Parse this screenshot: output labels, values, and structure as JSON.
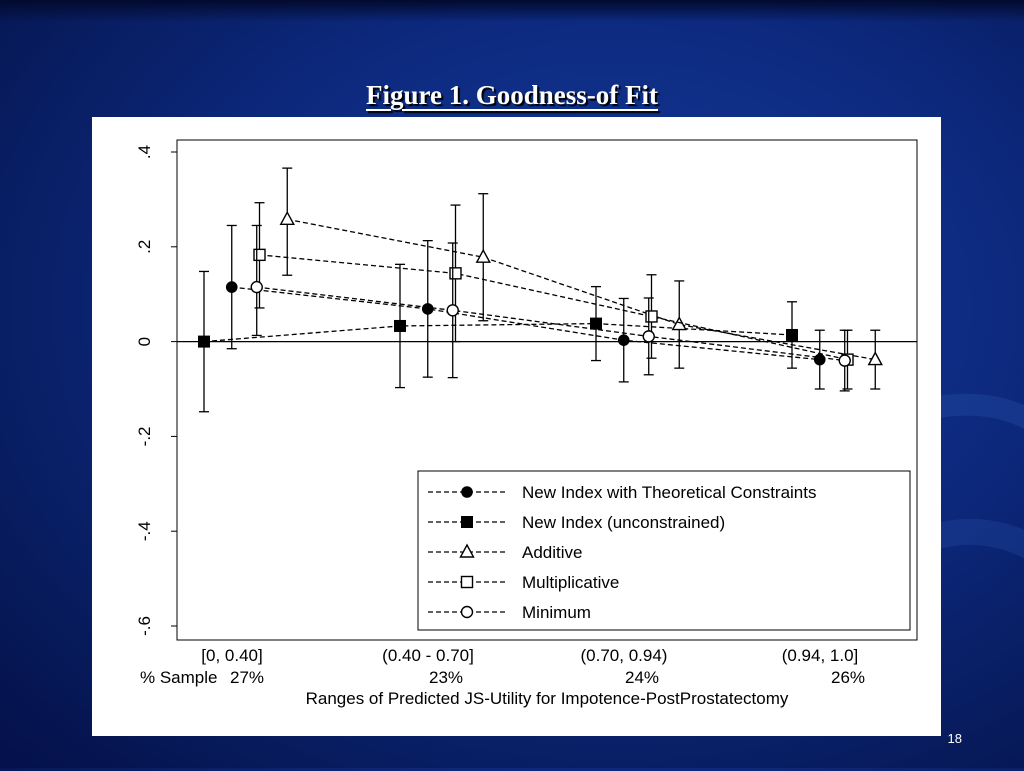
{
  "slide": {
    "title": "Figure 1.  Goodness-of Fit",
    "page_number": "18"
  },
  "colors": {
    "background": "#0d2a80",
    "title_text": "#ffffff",
    "panel": "#ffffff",
    "ink": "#000000"
  },
  "chart_data": {
    "type": "line",
    "title": "",
    "xlabel": "Ranges of Predicted JS-Utility for Impotence-PostProstatectomy",
    "ylabel": "",
    "ylim": [
      -0.6,
      0.4
    ],
    "yticks": [
      ".4",
      ".2",
      "0",
      "-.2",
      "-.4",
      "-.6"
    ],
    "ytick_values": [
      0.4,
      0.2,
      0,
      -0.2,
      -0.4,
      -0.6
    ],
    "reference_line": 0,
    "categories": [
      "[0, 0.40]",
      "(0.40 - 0.70]",
      "(0.70, 0.94)",
      "(0.94, 1.0]"
    ],
    "sample_row_label": "% Sample",
    "sample_percent": [
      "27%",
      "23%",
      "24%",
      "26%"
    ],
    "errorbars": true,
    "legend_position": "bottom-right",
    "series": [
      {
        "name": "New Index with Theoretical Constraints",
        "marker": "filled-circle",
        "order": 1,
        "values": [
          0.115,
          0.069,
          0.003,
          -0.038
        ],
        "lower": [
          -0.015,
          -0.075,
          -0.085,
          -0.1
        ],
        "upper": [
          0.245,
          0.213,
          0.091,
          0.024
        ]
      },
      {
        "name": "New Index (unconstrained)",
        "marker": "filled-square",
        "order": 0,
        "values": [
          0.0,
          0.033,
          0.038,
          0.014
        ],
        "lower": [
          -0.148,
          -0.097,
          -0.04,
          -0.056
        ],
        "upper": [
          0.148,
          0.163,
          0.116,
          0.084
        ]
      },
      {
        "name": "Additive",
        "marker": "open-triangle",
        "order": 3,
        "values": [
          0.258,
          0.178,
          0.036,
          -0.038
        ],
        "lower": [
          0.14,
          0.044,
          -0.056,
          -0.1
        ],
        "upper": [
          0.366,
          0.312,
          0.128,
          0.024
        ]
      },
      {
        "name": "Multiplicative",
        "marker": "open-square",
        "order": 2,
        "values": [
          0.183,
          0.144,
          0.053,
          -0.038
        ],
        "lower": [
          0.071,
          0.0,
          -0.035,
          -0.1
        ],
        "upper": [
          0.293,
          0.288,
          0.141,
          0.024
        ]
      },
      {
        "name": "Minimum",
        "marker": "open-circle",
        "order": 1.9,
        "values": [
          0.115,
          0.066,
          0.011,
          -0.04
        ],
        "lower": [
          0.013,
          -0.076,
          -0.07,
          -0.104
        ],
        "upper": [
          0.245,
          0.208,
          0.092,
          0.024
        ]
      }
    ]
  }
}
